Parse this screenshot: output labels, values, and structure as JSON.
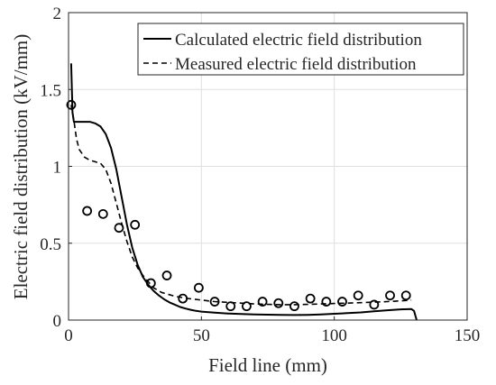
{
  "chart_data": {
    "type": "line",
    "title": "",
    "xlabel": "Field line (mm)",
    "ylabel": "Electric field distribution (kV/mm)",
    "xlim": [
      0,
      150
    ],
    "ylim": [
      0,
      2
    ],
    "xticks": [
      "0",
      "50",
      "100",
      "150"
    ],
    "yticks": [
      "0",
      "0.5",
      "1",
      "1.5",
      "2"
    ],
    "grid": true,
    "legend_position": "top-right",
    "series": [
      {
        "name": "Calculated electric field distribution",
        "style": "solid",
        "color": "#000000",
        "x": [
          1,
          1.5,
          2,
          4,
          6,
          8,
          10,
          12,
          14,
          16,
          18,
          20,
          22,
          24,
          26,
          28,
          30,
          32,
          34,
          36,
          38,
          40,
          42,
          44,
          46,
          48,
          50,
          55,
          60,
          65,
          70,
          75,
          80,
          85,
          90,
          95,
          100,
          105,
          110,
          115,
          120,
          125,
          129,
          130,
          131
        ],
        "y": [
          1.67,
          1.35,
          1.29,
          1.29,
          1.29,
          1.29,
          1.28,
          1.26,
          1.21,
          1.12,
          0.98,
          0.8,
          0.62,
          0.47,
          0.36,
          0.28,
          0.23,
          0.19,
          0.16,
          0.135,
          0.115,
          0.1,
          0.085,
          0.075,
          0.067,
          0.06,
          0.055,
          0.048,
          0.043,
          0.04,
          0.037,
          0.035,
          0.034,
          0.033,
          0.034,
          0.037,
          0.041,
          0.045,
          0.05,
          0.057,
          0.064,
          0.07,
          0.072,
          0.06,
          0.0
        ]
      },
      {
        "name": "Measured electric field distribution",
        "style": "dashed",
        "color": "#000000",
        "x": [
          1,
          2,
          3,
          4,
          6,
          8,
          10,
          12,
          14,
          16,
          18,
          20,
          22,
          24,
          26,
          28,
          30,
          32,
          35,
          40,
          45,
          50,
          55,
          60,
          65,
          70,
          75,
          80,
          85,
          90,
          95,
          100,
          105,
          110,
          115,
          120,
          125,
          129
        ],
        "y": [
          1.4,
          1.3,
          1.18,
          1.11,
          1.06,
          1.04,
          1.03,
          1.02,
          0.98,
          0.89,
          0.76,
          0.63,
          0.51,
          0.41,
          0.34,
          0.29,
          0.25,
          0.21,
          0.18,
          0.155,
          0.14,
          0.13,
          0.12,
          0.115,
          0.11,
          0.105,
          0.102,
          0.1,
          0.1,
          0.102,
          0.105,
          0.108,
          0.11,
          0.113,
          0.117,
          0.12,
          0.125,
          0.13
        ]
      },
      {
        "name": "",
        "style": "markers",
        "marker": "circle",
        "color": "#000000",
        "x": [
          1,
          7,
          13,
          19,
          25,
          31,
          37,
          43,
          49,
          55,
          61,
          67,
          73,
          79,
          85,
          91,
          97,
          103,
          109,
          115,
          121,
          127
        ],
        "y": [
          1.4,
          0.71,
          0.69,
          0.6,
          0.62,
          0.24,
          0.29,
          0.14,
          0.21,
          0.12,
          0.09,
          0.09,
          0.12,
          0.11,
          0.09,
          0.14,
          0.12,
          0.12,
          0.16,
          0.1,
          0.16,
          0.16
        ]
      }
    ]
  }
}
